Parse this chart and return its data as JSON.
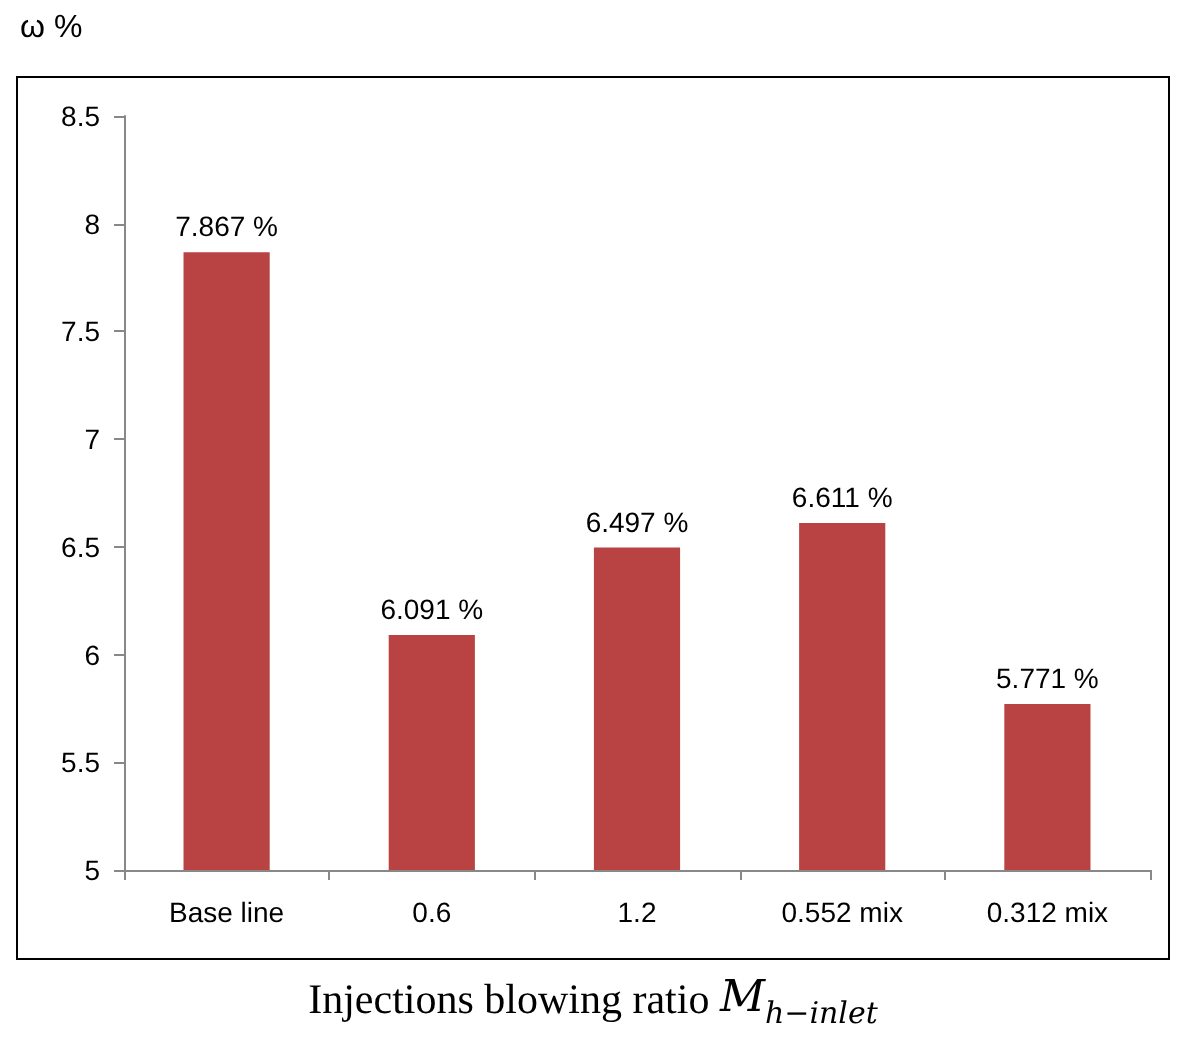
{
  "chart_data": {
    "type": "bar",
    "ylabel": "ω %",
    "xlabel": "Injections blowing ratio M$_{h−inlet}$",
    "categories": [
      "Base line",
      "0.6",
      "1.2",
      "0.552 mix",
      "0.312 mix"
    ],
    "values": [
      7.867,
      6.091,
      6.497,
      6.611,
      5.771
    ],
    "value_labels": [
      "7.867 %",
      "6.091 %",
      "6.497 %",
      "6.611 %",
      "5.771 %"
    ],
    "color": "#b94343",
    "ylim": [
      5,
      8.5
    ],
    "yticks": [
      5,
      5.5,
      6,
      6.5,
      7,
      7.5,
      8,
      8.5
    ],
    "grid": false
  }
}
